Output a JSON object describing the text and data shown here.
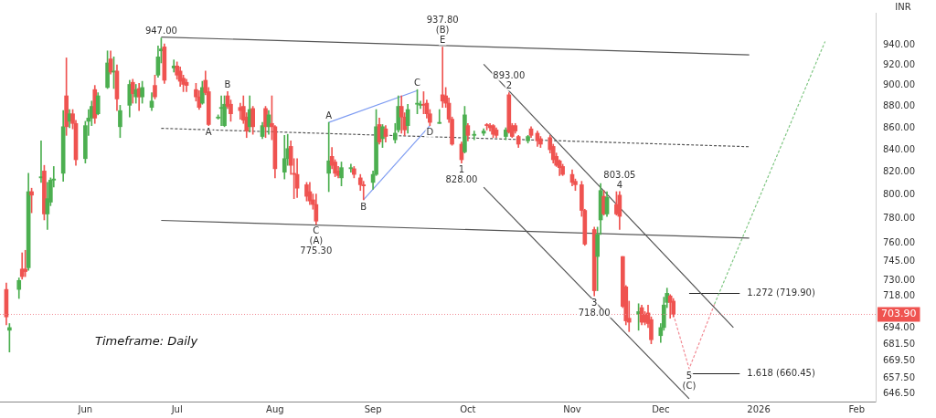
{
  "chart_data": {
    "type": "candlestick",
    "ylabel": "INR",
    "log": "y",
    "grid": false,
    "legend": false,
    "xlim": [
      "2025-05-06",
      "2026-02-07"
    ],
    "xticks": [
      {
        "value": "2025-06-02",
        "label": "Jun"
      },
      {
        "value": "2025-07-01",
        "label": "Jul"
      },
      {
        "value": "2025-08-01",
        "label": "Aug"
      },
      {
        "value": "2025-09-01",
        "label": "Sep"
      },
      {
        "value": "2025-10-01",
        "label": "Oct"
      },
      {
        "value": "2025-11-03",
        "label": "Nov"
      },
      {
        "value": "2025-12-01",
        "label": "Dec"
      },
      {
        "value": "2026-01-01",
        "label": "2026"
      },
      {
        "value": "2026-02-01",
        "label": "Feb"
      }
    ],
    "ylim": [
      641,
      973
    ],
    "yticks": [
      {
        "value": 940,
        "label": "940.00"
      },
      {
        "value": 920,
        "label": "920.00"
      },
      {
        "value": 900,
        "label": "900.00"
      },
      {
        "value": 880,
        "label": "880.00"
      },
      {
        "value": 860,
        "label": "860.00"
      },
      {
        "value": 840,
        "label": "840.00"
      },
      {
        "value": 820,
        "label": "820.00"
      },
      {
        "value": 800,
        "label": "800.00"
      },
      {
        "value": 780,
        "label": "780.00"
      },
      {
        "value": 760,
        "label": "760.00"
      },
      {
        "value": 745,
        "label": "745.00"
      },
      {
        "value": 730,
        "label": "730.00"
      },
      {
        "value": 718,
        "label": "718.00"
      },
      {
        "value": 694,
        "label": "694.00"
      },
      {
        "value": 681.5,
        "label": "681.50"
      },
      {
        "value": 669.5,
        "label": "669.50"
      },
      {
        "value": 657.5,
        "label": "657.50"
      },
      {
        "value": 646.5,
        "label": "646.50"
      }
    ],
    "x": [
      "2025-05-08",
      "2025-05-09",
      "2025-05-12",
      "2025-05-13",
      "2025-05-14",
      "2025-05-15",
      "2025-05-16",
      "2025-05-19",
      "2025-05-20",
      "2025-05-21",
      "2025-05-22",
      "2025-05-23",
      "2025-05-26",
      "2025-05-27",
      "2025-05-28",
      "2025-05-29",
      "2025-05-30",
      "2025-06-02",
      "2025-06-03",
      "2025-06-04",
      "2025-06-05",
      "2025-06-06",
      "2025-06-09",
      "2025-06-10",
      "2025-06-11",
      "2025-06-12",
      "2025-06-13",
      "2025-06-16",
      "2025-06-17",
      "2025-06-18",
      "2025-06-19",
      "2025-06-20",
      "2025-06-23",
      "2025-06-24",
      "2025-06-25",
      "2025-06-26",
      "2025-06-27",
      "2025-06-30",
      "2025-07-01",
      "2025-07-02",
      "2025-07-03",
      "2025-07-04",
      "2025-07-07",
      "2025-07-08",
      "2025-07-09",
      "2025-07-10",
      "2025-07-11",
      "2025-07-14",
      "2025-07-15",
      "2025-07-16",
      "2025-07-17",
      "2025-07-18",
      "2025-07-21",
      "2025-07-22",
      "2025-07-23",
      "2025-07-24",
      "2025-07-25",
      "2025-07-28",
      "2025-07-29",
      "2025-07-30",
      "2025-07-31",
      "2025-08-01",
      "2025-08-04",
      "2025-08-05",
      "2025-08-06",
      "2025-08-07",
      "2025-08-08",
      "2025-08-11",
      "2025-08-12",
      "2025-08-13",
      "2025-08-14",
      "2025-08-18",
      "2025-08-19",
      "2025-08-20",
      "2025-08-21",
      "2025-08-22",
      "2025-08-25",
      "2025-08-26",
      "2025-08-28",
      "2025-08-29",
      "2025-09-01",
      "2025-09-02",
      "2025-09-03",
      "2025-09-04",
      "2025-09-05",
      "2025-09-08",
      "2025-09-09",
      "2025-09-10",
      "2025-09-11",
      "2025-09-12",
      "2025-09-15",
      "2025-09-16",
      "2025-09-17",
      "2025-09-18",
      "2025-09-19",
      "2025-09-22",
      "2025-09-23",
      "2025-09-24",
      "2025-09-25",
      "2025-09-26",
      "2025-09-29",
      "2025-09-30",
      "2025-10-01",
      "2025-10-03",
      "2025-10-06",
      "2025-10-07",
      "2025-10-08",
      "2025-10-09",
      "2025-10-10",
      "2025-10-13",
      "2025-10-14",
      "2025-10-15",
      "2025-10-16",
      "2025-10-17",
      "2025-10-20",
      "2025-10-21",
      "2025-10-23",
      "2025-10-24",
      "2025-10-27",
      "2025-10-28",
      "2025-10-29",
      "2025-10-30",
      "2025-10-31",
      "2025-11-03",
      "2025-11-04",
      "2025-11-06",
      "2025-11-07",
      "2025-11-10",
      "2025-11-11",
      "2025-11-12",
      "2025-11-13",
      "2025-11-14",
      "2025-11-17",
      "2025-11-18",
      "2025-11-19",
      "2025-11-20",
      "2025-11-21",
      "2025-11-24",
      "2025-11-25",
      "2025-11-26",
      "2025-11-27",
      "2025-11-28",
      "2025-12-01",
      "2025-12-02",
      "2025-12-03",
      "2025-12-04",
      "2025-12-05"
    ],
    "ohlc": [
      [
        723,
        728,
        696,
        702
      ],
      [
        692,
        697,
        676,
        694
      ],
      [
        723,
        732,
        716,
        730
      ],
      [
        739,
        752,
        731,
        733
      ],
      [
        739,
        754,
        733,
        737
      ],
      [
        740,
        819,
        738,
        803
      ],
      [
        803,
        806,
        785,
        800
      ],
      [
        815,
        848,
        811,
        816
      ],
      [
        821,
        826,
        779,
        784
      ],
      [
        784,
        811,
        771,
        797
      ],
      [
        794,
        815,
        791,
        813
      ],
      [
        813,
        825,
        807,
        814
      ],
      [
        819,
        876,
        812,
        861
      ],
      [
        890,
        927,
        853,
        861
      ],
      [
        866,
        877,
        860,
        873
      ],
      [
        873,
        877,
        859,
        864
      ],
      [
        864,
        867,
        826,
        831
      ],
      [
        832,
        866,
        828,
        862
      ],
      [
        866,
        877,
        853,
        869
      ],
      [
        869,
        885,
        862,
        880
      ],
      [
        896,
        900,
        864,
        869
      ],
      [
        873,
        893,
        872,
        890
      ],
      [
        898,
        934,
        897,
        922
      ],
      [
        926,
        934,
        911,
        913
      ],
      [
        913,
        928,
        897,
        914
      ],
      [
        914,
        920,
        876,
        887
      ],
      [
        861,
        881,
        851,
        876
      ],
      [
        881,
        905,
        870,
        901
      ],
      [
        903,
        906,
        883,
        892
      ],
      [
        889,
        901,
        883,
        896
      ],
      [
        897,
        902,
        876,
        889
      ],
      [
        889,
        904,
        883,
        898
      ],
      [
        879,
        893,
        876,
        885
      ],
      [
        900,
        910,
        887,
        889
      ],
      [
        910,
        939,
        908,
        928
      ],
      [
        934,
        947,
        922,
        936
      ],
      [
        938,
        941,
        902,
        905
      ],
      [
        917,
        925,
        913,
        919
      ],
      [
        919,
        923,
        906,
        910
      ],
      [
        914,
        918,
        899,
        904
      ],
      [
        907,
        910,
        894,
        901
      ],
      [
        903,
        906,
        894,
        900
      ],
      [
        896,
        902,
        885,
        889
      ],
      [
        889,
        895,
        877,
        879
      ],
      [
        883,
        904,
        882,
        898
      ],
      [
        905,
        914,
        891,
        893
      ],
      [
        894,
        898,
        862,
        863
      ],
      [
        869,
        872,
        868,
        870
      ],
      [
        878,
        890,
        862,
        879
      ],
      [
        862,
        890,
        861,
        882
      ],
      [
        890,
        894,
        878,
        880
      ],
      [
        882,
        886,
        866,
        873
      ],
      [
        879,
        883,
        868,
        876
      ],
      [
        880,
        890,
        864,
        867
      ],
      [
        870,
        874,
        851,
        857
      ],
      [
        861,
        890,
        856,
        877
      ],
      [
        878,
        880,
        854,
        861
      ],
      [
        852,
        865,
        850,
        862
      ],
      [
        878,
        880,
        851,
        861
      ],
      [
        861,
        876,
        854,
        872
      ],
      [
        864,
        890,
        849,
        861
      ],
      [
        861,
        862,
        815,
        823
      ],
      [
        820,
        853,
        814,
        832
      ],
      [
        832,
        854,
        826,
        841
      ],
      [
        843,
        848,
        818,
        826
      ],
      [
        819,
        832,
        797,
        818
      ],
      [
        818,
        832,
        798,
        806
      ],
      [
        809,
        811,
        795,
        799
      ],
      [
        803,
        811,
        792,
        795
      ],
      [
        796,
        801,
        788,
        792
      ],
      [
        792,
        801,
        775.3,
        778
      ],
      [
        819,
        865,
        803,
        830
      ],
      [
        834,
        842,
        823,
        826
      ],
      [
        829,
        831,
        816,
        819
      ],
      [
        821,
        825,
        815,
        817
      ],
      [
        815,
        829,
        808,
        824
      ],
      [
        823,
        827,
        820,
        824
      ],
      [
        823,
        825,
        815,
        818
      ],
      [
        815,
        818,
        804,
        809
      ],
      [
        809,
        812,
        796,
        808
      ],
      [
        811,
        821,
        805,
        818
      ],
      [
        818,
        877,
        817,
        861
      ],
      [
        863,
        869,
        845,
        847
      ],
      [
        850,
        863,
        842,
        861
      ],
      [
        859,
        862,
        847,
        852
      ],
      [
        849,
        864,
        846,
        855
      ],
      [
        858,
        890,
        856,
        880
      ],
      [
        880,
        890,
        855,
        870
      ],
      [
        870,
        874,
        853,
        858
      ],
      [
        862,
        882,
        855,
        877
      ],
      [
        882,
        896,
        873,
        883
      ],
      [
        881,
        885,
        878,
        882
      ],
      [
        882,
        894,
        873,
        881
      ],
      [
        883,
        886,
        869,
        873
      ],
      [
        873,
        877,
        862,
        865
      ],
      [
        864,
        877,
        864,
        865
      ],
      [
        891,
        937.8,
        879,
        885
      ],
      [
        890,
        898,
        879,
        883
      ],
      [
        883,
        888,
        865,
        868
      ],
      [
        868,
        870,
        844,
        845
      ],
      [
        845,
        847,
        828,
        831
      ],
      [
        838,
        880,
        837,
        872
      ],
      [
        862,
        864,
        848,
        853
      ],
      [
        853,
        857,
        849,
        854
      ],
      [
        855,
        859,
        853,
        857
      ],
      [
        863,
        864,
        858,
        862
      ],
      [
        862,
        864,
        857,
        860
      ],
      [
        862,
        863,
        851,
        854
      ],
      [
        858,
        860,
        851,
        853
      ],
      [
        852,
        860,
        849,
        858
      ],
      [
        891,
        893,
        855,
        856
      ],
      [
        862,
        864,
        851,
        852
      ],
      [
        862,
        864,
        855,
        857
      ],
      [
        852,
        853,
        842,
        845
      ],
      [
        848,
        853,
        846,
        852
      ],
      [
        859,
        861,
        851,
        853
      ],
      [
        855,
        857,
        843,
        848
      ],
      [
        850,
        852,
        842,
        845
      ],
      [
        851,
        853,
        837,
        840
      ],
      [
        843,
        845,
        828,
        831
      ],
      [
        834,
        837,
        825,
        826
      ],
      [
        830,
        831,
        817,
        824
      ],
      [
        825,
        827,
        817,
        818
      ],
      [
        818,
        822,
        808,
        811
      ],
      [
        812,
        814,
        804,
        809
      ],
      [
        809,
        812,
        782,
        787
      ],
      [
        787,
        788,
        758,
        759
      ],
      [
        771,
        773,
        718,
        722
      ],
      [
        749,
        773,
        722,
        767
      ],
      [
        779,
        810,
        767,
        804
      ],
      [
        799,
        804,
        783,
        784
      ],
      [
        784,
        803,
        782,
        798
      ],
      [
        792,
        803,
        783,
        784
      ],
      [
        800,
        803.05,
        771,
        782
      ],
      [
        749,
        749,
        709,
        710
      ],
      [
        725,
        726,
        696,
        699
      ],
      [
        701,
        714,
        691,
        698
      ],
      [
        704,
        712,
        692,
        706
      ],
      [
        709,
        711,
        696,
        698
      ],
      [
        704,
        706,
        696,
        698
      ],
      [
        705,
        711,
        694,
        697
      ],
      [
        700,
        702,
        682,
        685
      ],
      [
        688,
        697,
        683,
        694
      ],
      [
        694,
        717,
        692,
        711
      ],
      [
        713,
        724,
        709,
        720
      ],
      [
        718,
        719,
        701,
        713
      ],
      [
        714,
        716,
        702,
        703.9
      ]
    ],
    "colors": [
      "#ef5350",
      "#4caf50",
      "#4caf50",
      "#ef5350",
      "#ef5350",
      "#4caf50",
      "#ef5350",
      "#4caf50",
      "#ef5350",
      "#4caf50",
      "#4caf50",
      "#4caf50",
      "#4caf50",
      "#ef5350",
      "#4caf50",
      "#ef5350",
      "#ef5350",
      "#4caf50",
      "#4caf50",
      "#4caf50",
      "#ef5350",
      "#4caf50",
      "#4caf50",
      "#ef5350",
      "#4caf50",
      "#ef5350",
      "#4caf50",
      "#4caf50",
      "#ef5350",
      "#4caf50",
      "#ef5350",
      "#4caf50",
      "#4caf50",
      "#ef5350",
      "#4caf50",
      "#4caf50",
      "#ef5350",
      "#4caf50",
      "#ef5350",
      "#ef5350",
      "#ef5350",
      "#ef5350",
      "#ef5350",
      "#ef5350",
      "#4caf50",
      "#ef5350",
      "#ef5350",
      "#4caf50",
      "#4caf50",
      "#4caf50",
      "#ef5350",
      "#ef5350",
      "#ef5350",
      "#ef5350",
      "#ef5350",
      "#4caf50",
      "#ef5350",
      "#4caf50",
      "#ef5350",
      "#4caf50",
      "#ef5350",
      "#ef5350",
      "#4caf50",
      "#4caf50",
      "#ef5350",
      "#ef5350",
      "#ef5350",
      "#ef5350",
      "#ef5350",
      "#ef5350",
      "#ef5350",
      "#4caf50",
      "#ef5350",
      "#ef5350",
      "#ef5350",
      "#4caf50",
      "#4caf50",
      "#ef5350",
      "#ef5350",
      "#ef5350",
      "#4caf50",
      "#4caf50",
      "#ef5350",
      "#4caf50",
      "#ef5350",
      "#4caf50",
      "#4caf50",
      "#ef5350",
      "#ef5350",
      "#4caf50",
      "#4caf50",
      "#4caf50",
      "#ef5350",
      "#ef5350",
      "#ef5350",
      "#4caf50",
      "#ef5350",
      "#ef5350",
      "#ef5350",
      "#ef5350",
      "#ef5350",
      "#4caf50",
      "#ef5350",
      "#4caf50",
      "#4caf50",
      "#ef5350",
      "#ef5350",
      "#ef5350",
      "#ef5350",
      "#4caf50",
      "#ef5350",
      "#ef5350",
      "#ef5350",
      "#ef5350",
      "#4caf50",
      "#ef5350",
      "#ef5350",
      "#ef5350",
      "#ef5350",
      "#ef5350",
      "#ef5350",
      "#ef5350",
      "#ef5350",
      "#ef5350",
      "#ef5350",
      "#ef5350",
      "#ef5350",
      "#ef5350",
      "#4caf50",
      "#4caf50",
      "#ef5350",
      "#4caf50",
      "#ef5350",
      "#ef5350",
      "#ef5350",
      "#ef5350",
      "#ef5350",
      "#4caf50",
      "#ef5350",
      "#ef5350",
      "#ef5350",
      "#ef5350",
      "#4caf50",
      "#4caf50",
      "#4caf50",
      "#ef5350",
      "#ef5350"
    ],
    "series": [
      {
        "type": "line",
        "color": "#555555",
        "line_style": "solid",
        "x": [
          "2025-06-26",
          "2025-12-29"
        ],
        "values": [
          948,
          930
        ]
      },
      {
        "type": "line",
        "color": "#555555",
        "line_style": "dashed",
        "x": [
          "2025-06-26",
          "2025-12-29"
        ],
        "values": [
          859.5,
          842.7
        ]
      },
      {
        "type": "line",
        "color": "#555555",
        "line_style": "solid",
        "x": [
          "2025-06-26",
          "2025-12-29"
        ],
        "values": [
          778.6,
          764
        ]
      },
      {
        "type": "line",
        "color": "#7e9cf2",
        "line_style": "solid",
        "x": [
          "2025-08-18",
          "2025-09-15"
        ],
        "values": [
          865,
          895
        ]
      },
      {
        "type": "line",
        "color": "#7e9cf2",
        "line_style": "solid",
        "x": [
          "2025-08-29",
          "2025-09-19"
        ],
        "values": [
          796,
          862
        ]
      },
      {
        "type": "line",
        "color": "#555555",
        "line_style": "solid",
        "x": [
          "2025-10-06",
          "2025-12-24"
        ],
        "values": [
          920.7,
          694
        ]
      },
      {
        "type": "line",
        "color": "#555555",
        "line_style": "solid",
        "x": [
          "2025-10-06",
          "2025-12-10"
        ],
        "values": [
          806.8,
          643
        ]
      },
      {
        "type": "line",
        "color": "#f28b95",
        "line_style": "dashed",
        "x": [
          "2025-12-05",
          "2025-12-10",
          "2025-12-18"
        ],
        "values": [
          703.9,
          664,
          711.6
        ]
      },
      {
        "type": "line",
        "color": "#81c784",
        "line_style": "dashed",
        "x": [
          "2025-12-18",
          "2026-01-22"
        ],
        "values": [
          711.6,
          943.5
        ]
      },
      {
        "type": "line",
        "color": "#222222",
        "line_style": "solid",
        "x": [
          "2025-12-10",
          "2025-12-26"
        ],
        "values": [
          719.9,
          719.9
        ]
      },
      {
        "type": "line",
        "color": "#222222",
        "line_style": "solid",
        "x": [
          "2025-12-10",
          "2025-12-26"
        ],
        "values": [
          660.45,
          660.45
        ]
      }
    ],
    "ref_lines": [
      {
        "axis": "y",
        "value": 703.9,
        "label": "703.90",
        "color": "#f28b95",
        "line_style": "dotted"
      }
    ],
    "annotations": [
      {
        "text": "947.00",
        "x": "2025-06-26",
        "y": 947
      },
      {
        "text": "937.80",
        "x": "2025-09-23",
        "y": 937.8
      },
      {
        "text": "(B)",
        "x": "2025-09-23",
        "y": 937.8
      },
      {
        "text": "E",
        "x": "2025-09-23",
        "y": 937.8
      },
      {
        "text": "A",
        "x": "2025-07-11",
        "y": 862
      },
      {
        "text": "B",
        "x": "2025-07-17",
        "y": 894
      },
      {
        "text": "A",
        "x": "2025-08-18",
        "y": 865
      },
      {
        "text": "C",
        "x": "2025-09-15",
        "y": 896
      },
      {
        "text": "B",
        "x": "2025-08-29",
        "y": 796
      },
      {
        "text": "D",
        "x": "2025-09-19",
        "y": 862
      },
      {
        "text": "C",
        "x": "2025-08-14",
        "y": 775.3
      },
      {
        "text": "(A)",
        "x": "2025-08-14",
        "y": 775.3
      },
      {
        "text": "775.30",
        "x": "2025-08-14",
        "y": 775.3
      },
      {
        "text": "1",
        "x": "2025-09-29",
        "y": 828
      },
      {
        "text": "828.00",
        "x": "2025-09-29",
        "y": 828
      },
      {
        "text": "893.00",
        "x": "2025-10-14",
        "y": 893
      },
      {
        "text": "2",
        "x": "2025-10-14",
        "y": 893
      },
      {
        "text": "803.05",
        "x": "2025-11-18",
        "y": 803.05
      },
      {
        "text": "4",
        "x": "2025-11-18",
        "y": 803.05
      },
      {
        "text": "3",
        "x": "2025-11-10",
        "y": 718
      },
      {
        "text": "718.00",
        "x": "2025-11-10",
        "y": 718
      },
      {
        "text": "5",
        "x": "2025-12-10",
        "y": 664
      },
      {
        "text": "(C)",
        "x": "2025-12-10",
        "y": 664
      },
      {
        "text": "1.272 (719.90)",
        "x": "2025-12-26",
        "y": 719.9
      },
      {
        "text": "1.618 (660.45)",
        "x": "2025-12-26",
        "y": 660.45
      },
      "Timeframe: Daily"
    ]
  }
}
